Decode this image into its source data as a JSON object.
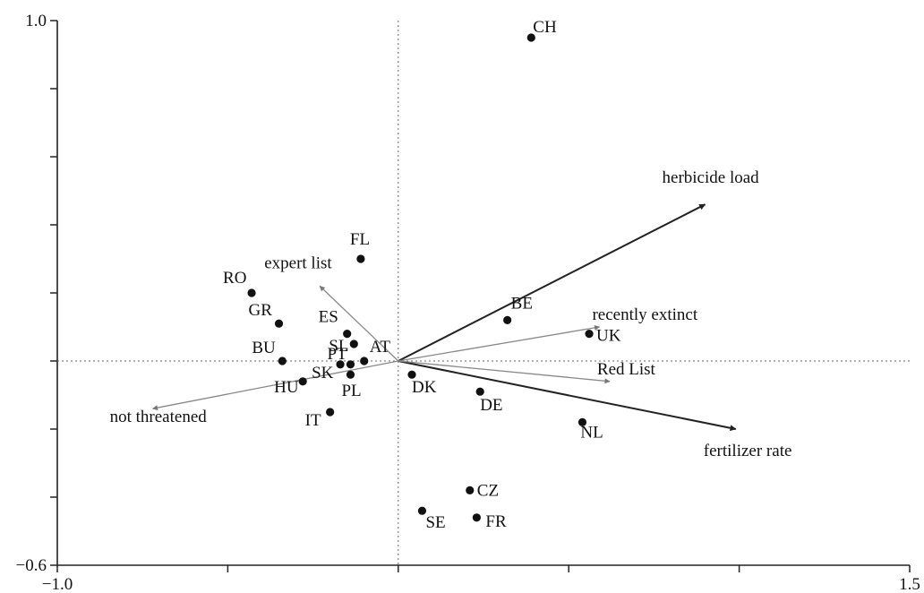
{
  "chart_data": {
    "type": "scatter",
    "title": "",
    "xlabel": "",
    "ylabel": "",
    "xlim": [
      -1.0,
      1.5
    ],
    "ylim": [
      -0.6,
      1.0
    ],
    "x_ticks": [
      -1.0,
      -0.5,
      0.0,
      0.5,
      1.0,
      1.5
    ],
    "y_ticks": [
      -0.6,
      -0.4,
      -0.2,
      0.0,
      0.2,
      0.4,
      0.6,
      0.8,
      1.0
    ],
    "x_tick_labels": [
      {
        "value": -1.0,
        "label": "−1.0"
      },
      {
        "value": 1.5,
        "label": "1.5"
      }
    ],
    "y_tick_labels": [
      {
        "value": 1.0,
        "label": "1.0"
      },
      {
        "value": -0.6,
        "label": "−0.6"
      }
    ],
    "reference_lines": {
      "x": 0,
      "y": 0,
      "style": "dotted"
    },
    "grid": false,
    "points": [
      {
        "label": "CH",
        "x": 0.39,
        "y": 0.95
      },
      {
        "label": "FL",
        "x": -0.11,
        "y": 0.3
      },
      {
        "label": "RO",
        "x": -0.43,
        "y": 0.2
      },
      {
        "label": "GR",
        "x": -0.35,
        "y": 0.11
      },
      {
        "label": "ES",
        "x": -0.15,
        "y": 0.08
      },
      {
        "label": "SL",
        "x": -0.13,
        "y": 0.05
      },
      {
        "label": "AT",
        "x": -0.1,
        "y": 0.0
      },
      {
        "label": "PT",
        "x": -0.14,
        "y": -0.01
      },
      {
        "label": "SK",
        "x": -0.17,
        "y": -0.01
      },
      {
        "label": "BU",
        "x": -0.34,
        "y": 0.0
      },
      {
        "label": "PL",
        "x": -0.14,
        "y": -0.04
      },
      {
        "label": "HU",
        "x": -0.28,
        "y": -0.06
      },
      {
        "label": "IT",
        "x": -0.2,
        "y": -0.15
      },
      {
        "label": "DK",
        "x": 0.04,
        "y": -0.04
      },
      {
        "label": "DE",
        "x": 0.24,
        "y": -0.09
      },
      {
        "label": "BE",
        "x": 0.32,
        "y": 0.12
      },
      {
        "label": "UK",
        "x": 0.56,
        "y": 0.08
      },
      {
        "label": "NL",
        "x": 0.54,
        "y": -0.18
      },
      {
        "label": "CZ",
        "x": 0.21,
        "y": -0.38
      },
      {
        "label": "SE",
        "x": 0.07,
        "y": -0.44
      },
      {
        "label": "FR",
        "x": 0.23,
        "y": -0.46
      }
    ],
    "vectors": [
      {
        "label": "herbicide load",
        "x": 0.9,
        "y": 0.46,
        "weight": "bold"
      },
      {
        "label": "fertilizer rate",
        "x": 0.99,
        "y": -0.2,
        "weight": "bold"
      },
      {
        "label": "recently extinct",
        "x": 0.59,
        "y": 0.1,
        "weight": "light"
      },
      {
        "label": "Red List",
        "x": 0.62,
        "y": -0.06,
        "weight": "light"
      },
      {
        "label": "expert list",
        "x": -0.23,
        "y": 0.22,
        "weight": "light"
      },
      {
        "label": "not threatened",
        "x": -0.72,
        "y": -0.14,
        "weight": "light"
      }
    ]
  }
}
